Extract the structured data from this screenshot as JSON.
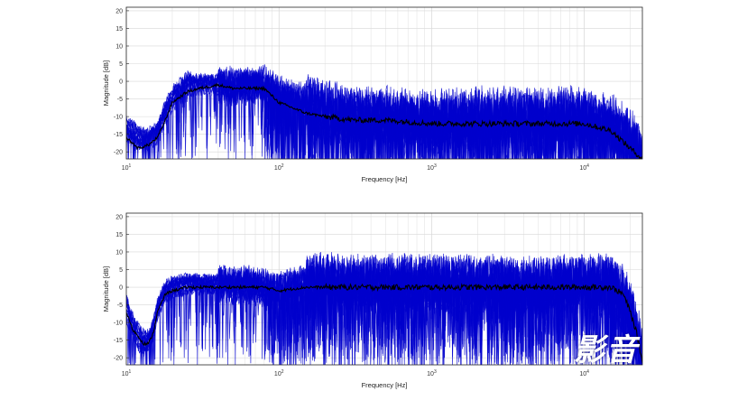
{
  "chart_data": [
    {
      "type": "line",
      "title": "",
      "xlabel": "Frequency [Hz]",
      "ylabel": "Magnitude [dB]",
      "xscale": "log",
      "xlim": [
        10,
        24000
      ],
      "ylim": [
        -22,
        21
      ],
      "xticks": [
        {
          "value": 10,
          "base": "10",
          "exp": "1"
        },
        {
          "value": 100,
          "base": "10",
          "exp": "2"
        },
        {
          "value": 1000,
          "base": "10",
          "exp": "3"
        },
        {
          "value": 10000,
          "base": "10",
          "exp": "4"
        }
      ],
      "yticks": [
        20,
        15,
        10,
        5,
        0,
        -5,
        -10,
        -15,
        -20
      ],
      "grid": true,
      "series_color": "#0000cc",
      "mean_color": "#000000",
      "series": [
        {
          "x": [
            10,
            12,
            14,
            16,
            18,
            20,
            25,
            30,
            40,
            50,
            60,
            80,
            100,
            150,
            200,
            300,
            500,
            1000,
            2000,
            5000,
            10000,
            15000,
            20000,
            24000
          ],
          "values": [
            -15,
            -18,
            -16,
            -14,
            -8,
            -4,
            0,
            -1,
            -1,
            -3,
            -1,
            -2,
            -5,
            -8,
            -10,
            -11,
            -11,
            -12,
            -12,
            -12,
            -12,
            -14,
            -18,
            -22
          ]
        },
        {
          "x": [
            10,
            12,
            14,
            16,
            18,
            20,
            25,
            30,
            40,
            50,
            60,
            80,
            100,
            150,
            200,
            300,
            500,
            1000,
            2000,
            5000,
            10000,
            15000,
            20000,
            24000
          ],
          "values": [
            -13,
            -15,
            -17,
            -15,
            -10,
            -6,
            -2,
            -1,
            -1,
            -1,
            -2,
            -1,
            -4,
            -6,
            -8,
            -10,
            -10,
            -11,
            -10,
            -10,
            -10,
            -12,
            -16,
            -22
          ]
        }
      ],
      "mean": {
        "x": [
          10,
          12,
          14,
          16,
          18,
          20,
          25,
          30,
          40,
          50,
          60,
          80,
          100,
          150,
          200,
          300,
          500,
          1000,
          2000,
          5000,
          10000,
          15000,
          20000,
          24000
        ],
        "values": [
          -16,
          -19,
          -18,
          -16,
          -11,
          -6,
          -3,
          -2,
          -1,
          -2,
          -2,
          -2,
          -6,
          -9,
          -10,
          -11,
          -11,
          -12,
          -12,
          -12,
          -12,
          -14,
          -19,
          -22
        ]
      }
    },
    {
      "type": "line",
      "title": "",
      "xlabel": "Frequency [Hz]",
      "ylabel": "Magnitude [dB]",
      "xscale": "log",
      "xlim": [
        10,
        24000
      ],
      "ylim": [
        -22,
        21
      ],
      "xticks": [
        {
          "value": 10,
          "base": "10",
          "exp": "1"
        },
        {
          "value": 100,
          "base": "10",
          "exp": "2"
        },
        {
          "value": 1000,
          "base": "10",
          "exp": "3"
        },
        {
          "value": 10000,
          "base": "10",
          "exp": "4"
        }
      ],
      "yticks": [
        20,
        15,
        10,
        5,
        0,
        -5,
        -10,
        -15,
        -20
      ],
      "grid": true,
      "series_color": "#0000cc",
      "mean_color": "#000000",
      "series": [
        {
          "x": [
            10,
            11,
            12,
            13,
            14,
            15,
            16,
            18,
            20,
            25,
            30,
            40,
            50,
            60,
            80,
            100,
            150,
            200,
            300,
            500,
            1000,
            2000,
            5000,
            10000,
            15000,
            18000,
            20000,
            22000,
            24000
          ],
          "values": [
            -5,
            -10,
            -13,
            -15,
            -15,
            -12,
            -6,
            -1,
            0,
            1,
            0,
            1,
            0,
            1,
            0,
            -1,
            1,
            2,
            0,
            1,
            1,
            0,
            0,
            1,
            1,
            -2,
            -6,
            -12,
            -20
          ]
        },
        {
          "x": [
            10,
            11,
            12,
            13,
            14,
            15,
            16,
            18,
            20,
            25,
            30,
            40,
            50,
            60,
            80,
            100,
            150,
            200,
            300,
            500,
            1000,
            2000,
            5000,
            10000,
            15000,
            18000,
            20000,
            22000,
            24000
          ],
          "values": [
            -8,
            -12,
            -16,
            -17,
            -16,
            -13,
            -7,
            -2,
            -1,
            0,
            1,
            0,
            0,
            0,
            -1,
            -2,
            0,
            1,
            1,
            0,
            0,
            1,
            0,
            0,
            0,
            -3,
            -8,
            -14,
            -21
          ]
        }
      ],
      "mean": {
        "x": [
          10,
          11,
          12,
          13,
          14,
          15,
          16,
          18,
          20,
          25,
          30,
          40,
          50,
          60,
          80,
          100,
          150,
          200,
          300,
          500,
          1000,
          2000,
          5000,
          10000,
          15000,
          18000,
          20000,
          22000,
          24000
        ],
        "values": [
          -7,
          -12,
          -14,
          -16,
          -16,
          -13,
          -7,
          -2,
          -1,
          0,
          0,
          0,
          0,
          0,
          0,
          -1,
          0,
          0,
          0,
          0,
          0,
          0,
          0,
          0,
          0,
          -2,
          -7,
          -13,
          -21
        ]
      }
    }
  ],
  "watermark": {
    "text": "影音",
    "color": "#ffffff"
  }
}
